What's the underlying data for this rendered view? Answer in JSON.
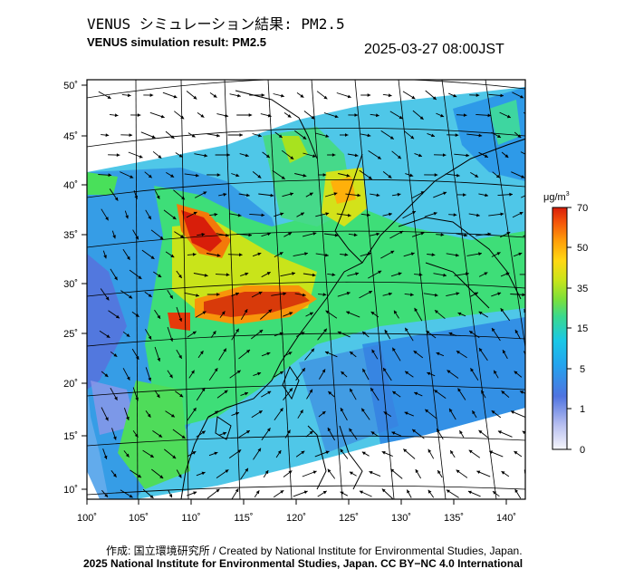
{
  "header": {
    "title_jp": "VENUS シミュレーション結果: PM2.5",
    "title_en": "VENUS simulation result: PM2.5",
    "timestamp": "2025-03-27 08:00JST"
  },
  "map": {
    "lon_ticks": [
      "100˚",
      "105˚",
      "110˚",
      "115˚",
      "120˚",
      "125˚",
      "130˚",
      "135˚",
      "140˚"
    ],
    "lat_ticks": [
      "50˚",
      "45˚",
      "40˚",
      "35˚",
      "30˚",
      "25˚",
      "20˚",
      "15˚",
      "10˚"
    ],
    "lon_range": [
      100,
      142
    ],
    "lat_range": [
      9,
      50
    ]
  },
  "colorbar": {
    "unit": "μg/m",
    "unit_sup": "3",
    "labels": [
      "70",
      "50",
      "35",
      "15",
      "5",
      "1",
      "0"
    ],
    "colors": [
      "#e8e8f8",
      "#9aa6ec",
      "#4f73e0",
      "#2a9bf0",
      "#19c8e6",
      "#2fd6a6",
      "#49e05a",
      "#a8e21f",
      "#ffe013",
      "#ffa40a",
      "#f85a09",
      "#d81e0a"
    ]
  },
  "footer": {
    "credit_jp": "作成: 国立環境研究所 / Created by National Institute for Environmental Studies, Japan.",
    "credit_en": "2025 National Institute for Environmental Studies, Japan. CC BY−NC 4.0 International"
  }
}
